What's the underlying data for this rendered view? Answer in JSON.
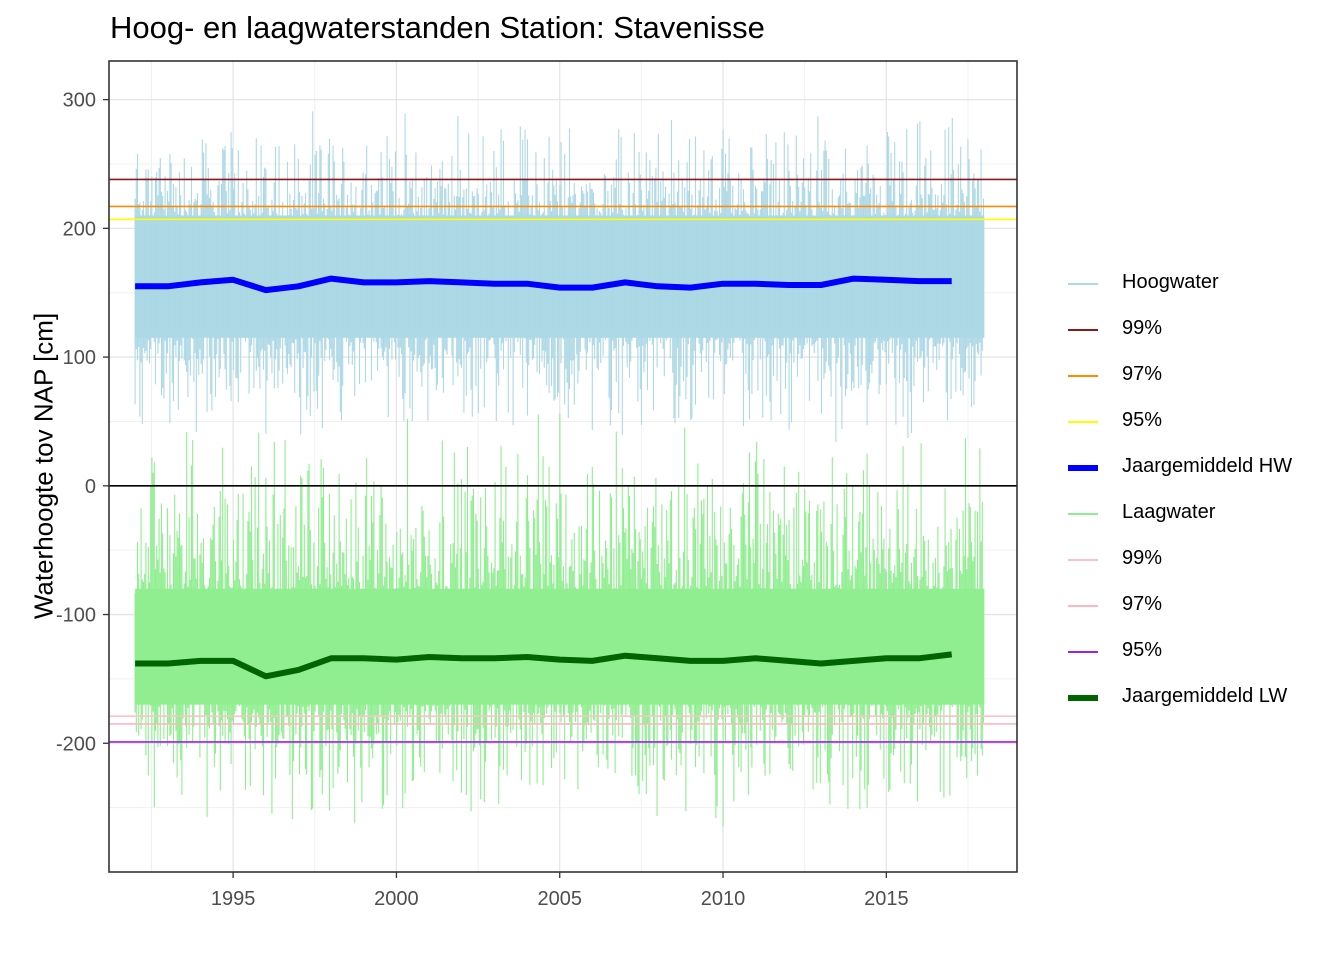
{
  "chart_data": {
    "type": "line",
    "title": "Hoog- en laagwaterstanden Station: Stavenisse",
    "xlabel": "",
    "ylabel": "Waterhoogte tov NAP [cm]",
    "xlim": [
      1991.2,
      2019.0
    ],
    "ylim": [
      -300,
      330
    ],
    "x_ticks": [
      1995,
      2000,
      2005,
      2010,
      2015
    ],
    "y_ticks": [
      -200,
      -100,
      0,
      100,
      200,
      300
    ],
    "y_tick_labels": [
      "-200",
      "-100",
      "0",
      "100",
      "200",
      "300"
    ],
    "grid": true,
    "legend_position": "right",
    "zero_line": 0,
    "hw_band": {
      "name": "Hoogwater",
      "color": "#add8e6",
      "x_range": [
        1992.0,
        2018.0
      ],
      "typical_range": [
        100,
        230
      ],
      "extreme_range": [
        30,
        295
      ]
    },
    "lw_band": {
      "name": "Laagwater",
      "color": "#90ee90",
      "x_range": [
        1992.0,
        2018.0
      ],
      "typical_range": [
        -185,
        -60
      ],
      "extreme_range": [
        -272,
        65
      ]
    },
    "percentile_lines": [
      {
        "name": "99%",
        "group": "HW",
        "value": 238,
        "color": "#8b1a1a"
      },
      {
        "name": "97%",
        "group": "HW",
        "value": 217,
        "color": "#ff8c00"
      },
      {
        "name": "95%",
        "group": "HW",
        "value": 207,
        "color": "#ffff00"
      },
      {
        "name": "99%",
        "group": "LW",
        "value": -179,
        "color": "#ffc0cb"
      },
      {
        "name": "97%",
        "group": "LW",
        "value": -185,
        "color": "#ffb6c1"
      },
      {
        "name": "95%",
        "group": "LW",
        "value": -199,
        "color": "#a020f0"
      }
    ],
    "series": [
      {
        "name": "Jaargemiddeld HW",
        "color": "#0000ff",
        "x": [
          1992,
          1993,
          1994,
          1995,
          1996,
          1997,
          1998,
          1999,
          2000,
          2001,
          2002,
          2003,
          2004,
          2005,
          2006,
          2007,
          2008,
          2009,
          2010,
          2011,
          2012,
          2013,
          2014,
          2015,
          2016,
          2017
        ],
        "values": [
          155,
          155,
          158,
          160,
          152,
          155,
          161,
          158,
          158,
          159,
          158,
          157,
          157,
          154,
          154,
          158,
          155,
          154,
          157,
          157,
          156,
          156,
          161,
          160,
          159,
          159
        ]
      },
      {
        "name": "Jaargemiddeld LW",
        "color": "#006400",
        "x": [
          1992,
          1993,
          1994,
          1995,
          1996,
          1997,
          1998,
          1999,
          2000,
          2001,
          2002,
          2003,
          2004,
          2005,
          2006,
          2007,
          2008,
          2009,
          2010,
          2011,
          2012,
          2013,
          2014,
          2015,
          2016,
          2017
        ],
        "values": [
          -138,
          -138,
          -136,
          -136,
          -148,
          -143,
          -134,
          -134,
          -135,
          -133,
          -134,
          -134,
          -133,
          -135,
          -136,
          -132,
          -134,
          -136,
          -136,
          -134,
          -136,
          -138,
          -136,
          -134,
          -134,
          -131
        ]
      }
    ]
  },
  "legend": {
    "items": [
      {
        "label": "Hoogwater",
        "color": "#add8e6",
        "thick": false
      },
      {
        "label": "99%",
        "color": "#8b1a1a",
        "thick": false
      },
      {
        "label": "97%",
        "color": "#ff8c00",
        "thick": false
      },
      {
        "label": "95%",
        "color": "#ffff00",
        "thick": false
      },
      {
        "label": "Jaargemiddeld HW",
        "color": "#0000ff",
        "thick": true
      },
      {
        "label": "Laagwater",
        "color": "#90ee90",
        "thick": false
      },
      {
        "label": "99%",
        "color": "#ffc0cb",
        "thick": false
      },
      {
        "label": "97%",
        "color": "#ffb6c1",
        "thick": false
      },
      {
        "label": "95%",
        "color": "#a020f0",
        "thick": false
      },
      {
        "label": "Jaargemiddeld LW",
        "color": "#006400",
        "thick": true
      }
    ]
  }
}
